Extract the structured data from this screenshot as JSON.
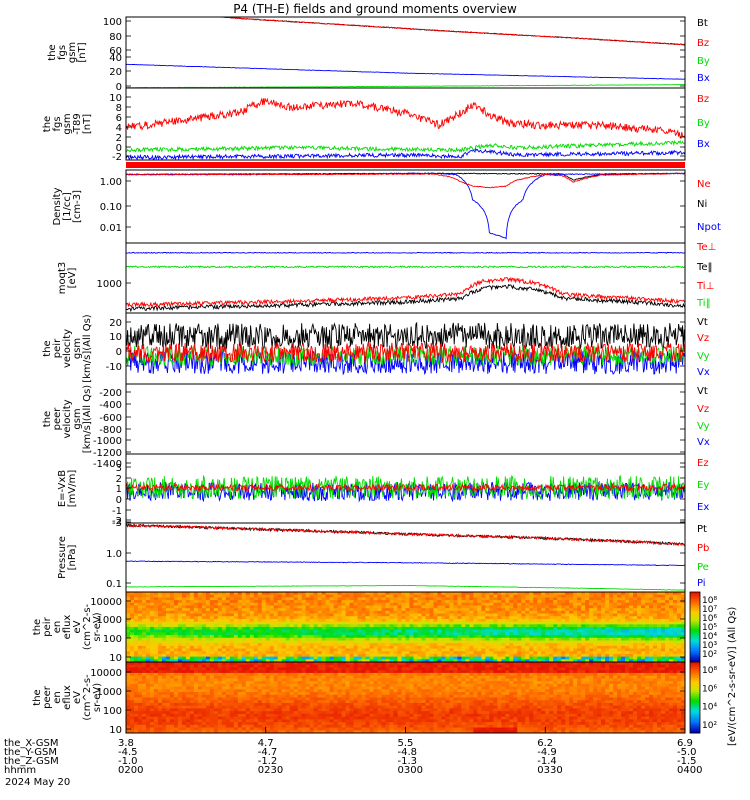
{
  "chart_data": {
    "type": "line",
    "title": "P4 (TH-E) fields and ground moments overview",
    "date": "2024 May 20",
    "x_ticks": [
      "0200",
      "0230",
      "0300",
      "0330",
      "0400"
    ],
    "ephemeris": {
      "labels": [
        "the_X-GSM",
        "the_Y-GSM",
        "the_Z-GSM",
        "hhmm"
      ],
      "rows": [
        [
          "3.8",
          "4.7",
          "5.5",
          "6.2",
          "6.9"
        ],
        [
          "-4.5",
          "-4.7",
          "-4.8",
          "-4.9",
          "-5.0"
        ],
        [
          "-1.0",
          "-1.2",
          "-1.3",
          "-1.4",
          "-1.5"
        ],
        [
          "0200",
          "0230",
          "0300",
          "0330",
          "0400"
        ]
      ]
    },
    "colors": {
      "black": "#000000",
      "red": "#ff0000",
      "green": "#00dd00",
      "blue": "#0000ff"
    },
    "panels": [
      {
        "id": "fgs_gsm",
        "ylabel": [
          "the",
          "fgs",
          "gsm",
          "[nT]"
        ],
        "ticks": [
          "100",
          "80",
          "60",
          "40",
          "20",
          "0"
        ],
        "ylim": [
          0,
          105
        ],
        "legend": [
          "Bt",
          "Bz",
          "By",
          "Bx"
        ],
        "legend_colors": [
          "#000000",
          "#ff0000",
          "#00dd00",
          "#0000ff"
        ],
        "series": [
          {
            "color": "#00dd00",
            "x": [
              0,
              0.3,
              0.6,
              1
            ],
            "y": [
              0.5,
              1.5,
              3,
              5
            ],
            "noise": 0.3
          },
          {
            "color": "#0000ff",
            "x": [
              0,
              0.5,
              1
            ],
            "y": [
              35,
              22,
              13
            ],
            "noise": 0.3
          },
          {
            "color": "#000000",
            "x": [
              0,
              0.2,
              0.4,
              0.6,
              0.8,
              1
            ],
            "y": [
              118,
              103,
              93,
              83,
              74,
              64
            ],
            "noise": 0.6
          },
          {
            "color": "#ff0000",
            "x": [
              0,
              0.2,
              0.4,
              0.6,
              0.8,
              1
            ],
            "y": [
              118,
              103,
              93,
              83,
              74,
              64
            ],
            "noise": 0.6
          }
        ]
      },
      {
        "id": "fgs_gsm_t89",
        "ylabel": [
          "the",
          "fgs",
          "gsm",
          "-T89",
          "[nT]"
        ],
        "ticks": [
          "10",
          "8",
          "6",
          "4",
          "2",
          "0",
          "-2"
        ],
        "ylim": [
          -3.5,
          11
        ],
        "legend": [
          "Bz",
          "By",
          "Bx"
        ],
        "legend_colors": [
          "#ff0000",
          "#00dd00",
          "#0000ff"
        ],
        "series": [
          {
            "color": "#0000ff",
            "x": [
              0,
              0.5,
              0.6,
              0.62,
              0.7,
              1
            ],
            "y": [
              -3,
              -2.5,
              -2.8,
              -1.5,
              -2.5,
              -2
            ],
            "noise": 0.4
          },
          {
            "color": "#00dd00",
            "x": [
              0,
              0.3,
              0.6,
              0.65,
              0.7,
              1
            ],
            "y": [
              -1.5,
              -1,
              -1.5,
              -0.5,
              -1,
              0
            ],
            "noise": 0.4
          },
          {
            "color": "#ff0000",
            "x": [
              0,
              0.1,
              0.2,
              0.25,
              0.3,
              0.4,
              0.5,
              0.56,
              0.62,
              0.68,
              0.75,
              0.85,
              0.95,
              1
            ],
            "y": [
              3,
              4.5,
              6,
              8.5,
              7,
              8,
              6,
              3.5,
              7.5,
              4,
              3.5,
              3.5,
              2.5,
              1.5
            ],
            "noise": 0.8
          }
        ]
      },
      {
        "id": "density",
        "ylabel": [
          "Density",
          "[1/cc]",
          "[cm-3]"
        ],
        "ticks": [
          "1.00",
          "0.10",
          "0.01"
        ],
        "ylim": [
          0.002,
          1.5
        ],
        "log": true,
        "legend": [
          "Ne",
          "Ni",
          "Npot"
        ],
        "legend_colors": [
          "#ff0000",
          "#000000",
          "#0000ff"
        ],
        "series": [
          {
            "color": "#000000",
            "x": [
              0,
              0.3,
              0.55,
              0.78,
              0.8,
              0.85,
              0.9,
              1
            ],
            "y": [
              1.0,
              1.05,
              1.1,
              1.05,
              0.6,
              1.0,
              1.05,
              1.1
            ],
            "noise": 0.01
          },
          {
            "color": "#0000ff",
            "x": [
              0,
              0.3,
              0.5,
              0.56,
              0.59,
              0.62,
              0.65,
              0.68,
              0.71,
              0.75,
              0.85,
              1
            ],
            "y": [
              1.0,
              1.05,
              1.1,
              1.1,
              1.0,
              0.1,
              0.005,
              0.003,
              0.1,
              1.0,
              1.05,
              1.1
            ],
            "noise": 0.01
          },
          {
            "color": "#ff0000",
            "x": [
              0,
              0.3,
              0.55,
              0.58,
              0.6,
              0.62,
              0.65,
              0.68,
              0.7,
              0.75,
              0.78,
              0.8,
              0.85,
              1
            ],
            "y": [
              0.98,
              1.0,
              1.05,
              0.8,
              0.5,
              0.35,
              0.3,
              0.35,
              0.6,
              1.0,
              0.9,
              0.5,
              0.95,
              1.1
            ],
            "noise": 0.01
          }
        ]
      },
      {
        "id": "moments_t",
        "ylabel": [
          "moqt3",
          "[eV]"
        ],
        "ticks": [
          "1000"
        ],
        "ylim": [
          100,
          100000
        ],
        "log": true,
        "legend": [
          "Te⊥",
          "Te‖",
          "Ti⊥",
          "Ti‖"
        ],
        "legend_colors": [
          "#ff0000",
          "#000000",
          "#ff0000",
          "#00dd00"
        ],
        "series": [
          {
            "color": "#0000ff",
            "x": [
              0,
              1
            ],
            "y": [
              38000,
              38000
            ],
            "noise": 0.01
          },
          {
            "color": "#00dd00",
            "x": [
              0,
              1
            ],
            "y": [
              9500,
              9500
            ],
            "noise": 0.02
          },
          {
            "color": "#000000",
            "x": [
              0,
              0.3,
              0.5,
              0.6,
              0.64,
              0.68,
              0.72,
              0.78,
              0.85,
              1
            ],
            "y": [
              150,
              220,
              300,
              420,
              1200,
              1400,
              1100,
              450,
              350,
              200
            ],
            "noise": 0.05
          },
          {
            "color": "#ff0000",
            "x": [
              0,
              0.3,
              0.5,
              0.6,
              0.64,
              0.68,
              0.72,
              0.78,
              0.85,
              1
            ],
            "y": [
              220,
              320,
              450,
              650,
              2400,
              2800,
              2200,
              650,
              500,
              300
            ],
            "noise": 0.05
          }
        ]
      },
      {
        "id": "peir_velocity",
        "ylabel": [
          "the",
          "peir",
          "velocity",
          "gsm",
          "[km/s](All Qs)"
        ],
        "ticks": [
          "20",
          "10",
          "0",
          "-10"
        ],
        "ylim": [
          -15,
          28
        ],
        "legend": [
          "Vt",
          "Vz",
          "Vy",
          "Vx"
        ],
        "legend_colors": [
          "#000000",
          "#ff0000",
          "#00dd00",
          "#0000ff"
        ],
        "series": [
          {
            "color": "#000000",
            "x": [
              0,
              1
            ],
            "y": [
              14,
              14
            ],
            "noise": 8
          },
          {
            "color": "#0000ff",
            "x": [
              0,
              1
            ],
            "y": [
              -2,
              -2
            ],
            "noise": 7
          },
          {
            "color": "#00dd00",
            "x": [
              0,
              1
            ],
            "y": [
              2,
              2
            ],
            "noise": 6
          },
          {
            "color": "#ff0000",
            "x": [
              0,
              1
            ],
            "y": [
              4,
              4
            ],
            "noise": 6
          }
        ]
      },
      {
        "id": "peer_velocity",
        "ylabel": [
          "the",
          "peer",
          "velocity",
          "gsm",
          "[km/s](All Qs)"
        ],
        "ticks": [
          "-200",
          "-400",
          "-600",
          "-800",
          "-1000",
          "-1200",
          "-1400"
        ],
        "ylim": [
          -1450,
          -150
        ],
        "legend": [
          "Vt",
          "Vz",
          "Vy",
          "Vx"
        ],
        "legend_colors": [
          "#000000",
          "#ff0000",
          "#00dd00",
          "#0000ff"
        ],
        "series": []
      },
      {
        "id": "efield",
        "ylabel": [
          "E=-VxB",
          "[mV/m]"
        ],
        "ticks": [
          "3",
          "2",
          "1",
          "0",
          "-1",
          "-2",
          "-3"
        ],
        "ylim": [
          -3.3,
          3.3
        ],
        "legend": [
          "Ez",
          "Ey",
          "Ex"
        ],
        "legend_colors": [
          "#ff0000",
          "#00dd00",
          "#0000ff"
        ],
        "series": [
          {
            "color": "#0000ff",
            "x": [
              0,
              1
            ],
            "y": [
              -0.3,
              -0.3
            ],
            "noise": 0.9
          },
          {
            "color": "#00dd00",
            "x": [
              0,
              1
            ],
            "y": [
              0.1,
              0.1
            ],
            "noise": 1.1
          },
          {
            "color": "#ff0000",
            "x": [
              0,
              1
            ],
            "y": [
              0.1,
              0.1
            ],
            "noise": 0.3
          }
        ]
      },
      {
        "id": "pressure",
        "ylabel": [
          "Pressure",
          "[nPa]"
        ],
        "ticks": [
          "1.0",
          "0.1"
        ],
        "ylim": [
          0.08,
          6
        ],
        "log": true,
        "legend": [
          "Pt",
          "Pb",
          "Pe",
          "Pi"
        ],
        "legend_colors": [
          "#000000",
          "#ff0000",
          "#00dd00",
          "#0000ff"
        ],
        "series": [
          {
            "color": "#00dd00",
            "x": [
              0,
              0.5,
              1
            ],
            "y": [
              0.11,
              0.12,
              0.09
            ],
            "noise": 0.003
          },
          {
            "color": "#0000ff",
            "x": [
              0,
              0.5,
              1
            ],
            "y": [
              0.55,
              0.5,
              0.42
            ],
            "noise": 0.005
          },
          {
            "color": "#000000",
            "x": [
              0,
              0.25,
              0.5,
              0.75,
              1
            ],
            "y": [
              5.2,
              4.0,
              3.0,
              2.3,
              1.6
            ],
            "noise": 0.02
          },
          {
            "color": "#ff0000",
            "x": [
              0,
              0.25,
              0.5,
              0.75,
              1
            ],
            "y": [
              5.2,
              4.0,
              3.0,
              2.3,
              1.6
            ],
            "noise": 0.02
          }
        ]
      },
      {
        "id": "peir_en_eflux",
        "type": "heatmap",
        "ylabel": [
          "the",
          "peir",
          "en",
          "eflux",
          "eV",
          "(cm^2-s-",
          "sr-eV)"
        ],
        "ticks": [
          "10000",
          "1000",
          "100",
          "10"
        ],
        "colorbar_ticks": [
          "10⁸",
          "10⁷",
          "10⁶",
          "10⁵",
          "10⁴",
          "10³",
          "10²"
        ],
        "colorbar_label": "[eV/(cm^2-s-sr-eV)] (All Qs)"
      },
      {
        "id": "peer_en_eflux",
        "type": "heatmap",
        "ylabel": [
          "the",
          "peer",
          "en",
          "eflux",
          "eV",
          "(cm^2-s-",
          "sr-eV)"
        ],
        "ticks": [
          "10000",
          "1000",
          "100",
          "10"
        ],
        "colorbar_ticks": [
          "10⁸",
          "10⁶",
          "10⁴",
          "10²"
        ],
        "colorbar_label": "[eV/(cm^2-s-sr-eV)] (All Qs)"
      }
    ]
  }
}
